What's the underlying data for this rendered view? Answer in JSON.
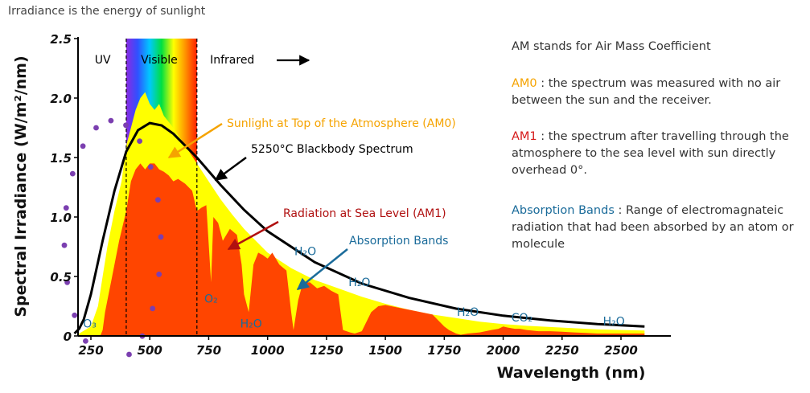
{
  "page_title": "Irradiance is the energy of sunlight",
  "colors": {
    "am0_fill": "#ffff00",
    "am1_fill": "#ff4500",
    "blackbody_line": "#000000",
    "am0_text": "#f5a300",
    "am1_text": "#d61a1a",
    "absorption_text": "#1a6b9a",
    "molecule_text": "#1a6b9a",
    "dots": "#7b3fb0"
  },
  "chart_data": {
    "type": "area",
    "xlabel": "Wavelength (nm)",
    "ylabel": "Spectral Irradiance (W/m²/nm)",
    "xlim": [
      150,
      2700
    ],
    "ylim": [
      0,
      2.5
    ],
    "x_ticks": [
      250,
      500,
      750,
      1000,
      1250,
      1500,
      1750,
      2000,
      2250,
      2500
    ],
    "y_ticks": [
      0,
      0.5,
      1.0,
      1.5,
      2.0,
      2.5
    ],
    "x_tick_labels": [
      "250",
      "500",
      "750",
      "1000",
      "1250",
      "1500",
      "1750",
      "2000",
      "2250",
      "2500"
    ],
    "y_tick_labels": [
      "0",
      "0.5",
      "1.0",
      "1.5",
      "2.0",
      "2.5"
    ],
    "regions": [
      {
        "label": "UV",
        "x": 300
      },
      {
        "label": "Visible",
        "x": 540
      },
      {
        "label": "Infrared",
        "x": 850
      }
    ],
    "visible_band": [
      400,
      700
    ],
    "series": [
      {
        "name": "AM0",
        "x": [
          200,
          250,
          280,
          300,
          320,
          350,
          380,
          400,
          420,
          440,
          460,
          480,
          500,
          520,
          540,
          560,
          580,
          600,
          650,
          700,
          750,
          800,
          850,
          900,
          950,
          1000,
          1100,
          1200,
          1300,
          1400,
          1500,
          1600,
          1700,
          1800,
          1900,
          2000,
          2100,
          2200,
          2300,
          2400,
          2500,
          2600
        ],
        "y": [
          0.02,
          0.08,
          0.25,
          0.5,
          0.75,
          1.05,
          1.3,
          1.6,
          1.75,
          1.9,
          2.0,
          2.05,
          1.95,
          1.9,
          1.95,
          1.85,
          1.8,
          1.75,
          1.6,
          1.45,
          1.3,
          1.15,
          1.02,
          0.9,
          0.8,
          0.7,
          0.57,
          0.47,
          0.4,
          0.33,
          0.27,
          0.22,
          0.18,
          0.15,
          0.12,
          0.1,
          0.085,
          0.075,
          0.065,
          0.055,
          0.05,
          0.045
        ]
      },
      {
        "name": "AM1",
        "x": [
          250,
          290,
          300,
          310,
          320,
          340,
          370,
          400,
          420,
          440,
          460,
          480,
          500,
          520,
          540,
          560,
          580,
          600,
          620,
          650,
          680,
          700,
          720,
          740,
          760,
          770,
          790,
          810,
          840,
          870,
          890,
          900,
          920,
          940,
          960,
          980,
          1000,
          1020,
          1050,
          1080,
          1100,
          1110,
          1130,
          1150,
          1180,
          1210,
          1240,
          1270,
          1300,
          1320,
          1350,
          1370,
          1400,
          1440,
          1470,
          1500,
          1550,
          1600,
          1650,
          1700,
          1750,
          1770,
          1800,
          1820,
          1850,
          1900,
          1950,
          1980,
          2000,
          2020,
          2050,
          2070,
          2100,
          2150,
          2200,
          2250,
          2300,
          2350,
          2400,
          2450,
          2480,
          2500,
          2550,
          2600
        ],
        "y": [
          0,
          0,
          0.05,
          0.2,
          0.3,
          0.5,
          0.8,
          1.05,
          1.3,
          1.4,
          1.45,
          1.4,
          1.45,
          1.45,
          1.4,
          1.38,
          1.35,
          1.3,
          1.32,
          1.28,
          1.22,
          1.05,
          1.08,
          1.1,
          0.45,
          1.0,
          0.95,
          0.8,
          0.9,
          0.85,
          0.6,
          0.35,
          0.2,
          0.6,
          0.7,
          0.68,
          0.65,
          0.7,
          0.6,
          0.55,
          0.2,
          0.05,
          0.3,
          0.45,
          0.45,
          0.4,
          0.42,
          0.38,
          0.35,
          0.05,
          0.03,
          0.02,
          0.04,
          0.2,
          0.25,
          0.26,
          0.24,
          0.22,
          0.2,
          0.18,
          0.08,
          0.05,
          0.02,
          0.01,
          0.02,
          0.03,
          0.05,
          0.06,
          0.08,
          0.07,
          0.06,
          0.06,
          0.05,
          0.04,
          0.04,
          0.035,
          0.03,
          0.025,
          0.02,
          0.02,
          0.02,
          0.02,
          0.02,
          0.02
        ]
      },
      {
        "name": "5250°C Blackbody Spectrum",
        "x": [
          180,
          200,
          220,
          250,
          280,
          300,
          350,
          400,
          450,
          500,
          550,
          600,
          700,
          800,
          900,
          1000,
          1200,
          1400,
          1600,
          1800,
          2000,
          2200,
          2400,
          2600
        ],
        "y": [
          0.02,
          0.06,
          0.14,
          0.35,
          0.62,
          0.8,
          1.22,
          1.55,
          1.73,
          1.79,
          1.77,
          1.7,
          1.5,
          1.27,
          1.06,
          0.88,
          0.62,
          0.44,
          0.32,
          0.23,
          0.17,
          0.13,
          0.1,
          0.08
        ]
      }
    ],
    "molecule_labels": [
      {
        "text": "O₃",
        "x": 245,
        "y": 0.07
      },
      {
        "text": "O₂",
        "x": 760,
        "y": 0.28
      },
      {
        "text": "H₂O",
        "x": 930,
        "y": 0.07
      },
      {
        "text": "H₂O",
        "x": 1160,
        "y": 0.68
      },
      {
        "text": "H₂O",
        "x": 1390,
        "y": 0.42
      },
      {
        "text": "H₂O",
        "x": 1850,
        "y": 0.17
      },
      {
        "text": "CO₂",
        "x": 2080,
        "y": 0.12
      },
      {
        "text": "H₂O",
        "x": 2470,
        "y": 0.09
      }
    ],
    "annotations": {
      "am0": "Sunlight at Top of the Atmosphere (AM0)",
      "blackbody": "5250°C Blackbody Spectrum",
      "am1": "Radiation at Sea Level (AM1)",
      "absorption": "Absorption Bands"
    }
  },
  "side_panel": {
    "intro": "AM stands for Air Mass Coefficient",
    "am0_key": "AM0",
    "am0_desc": " : the spectrum was measured with no air between the sun and the receiver.",
    "am1_key": "AM1",
    "am1_desc": " : the spectrum after travelling through the atmosphere to the sea level with sun directly overhead 0°.",
    "abs_key": "Absorption Bands",
    "abs_desc": " : Range of electromagnateic radiation that had been absorbed by an atom or molecule"
  }
}
